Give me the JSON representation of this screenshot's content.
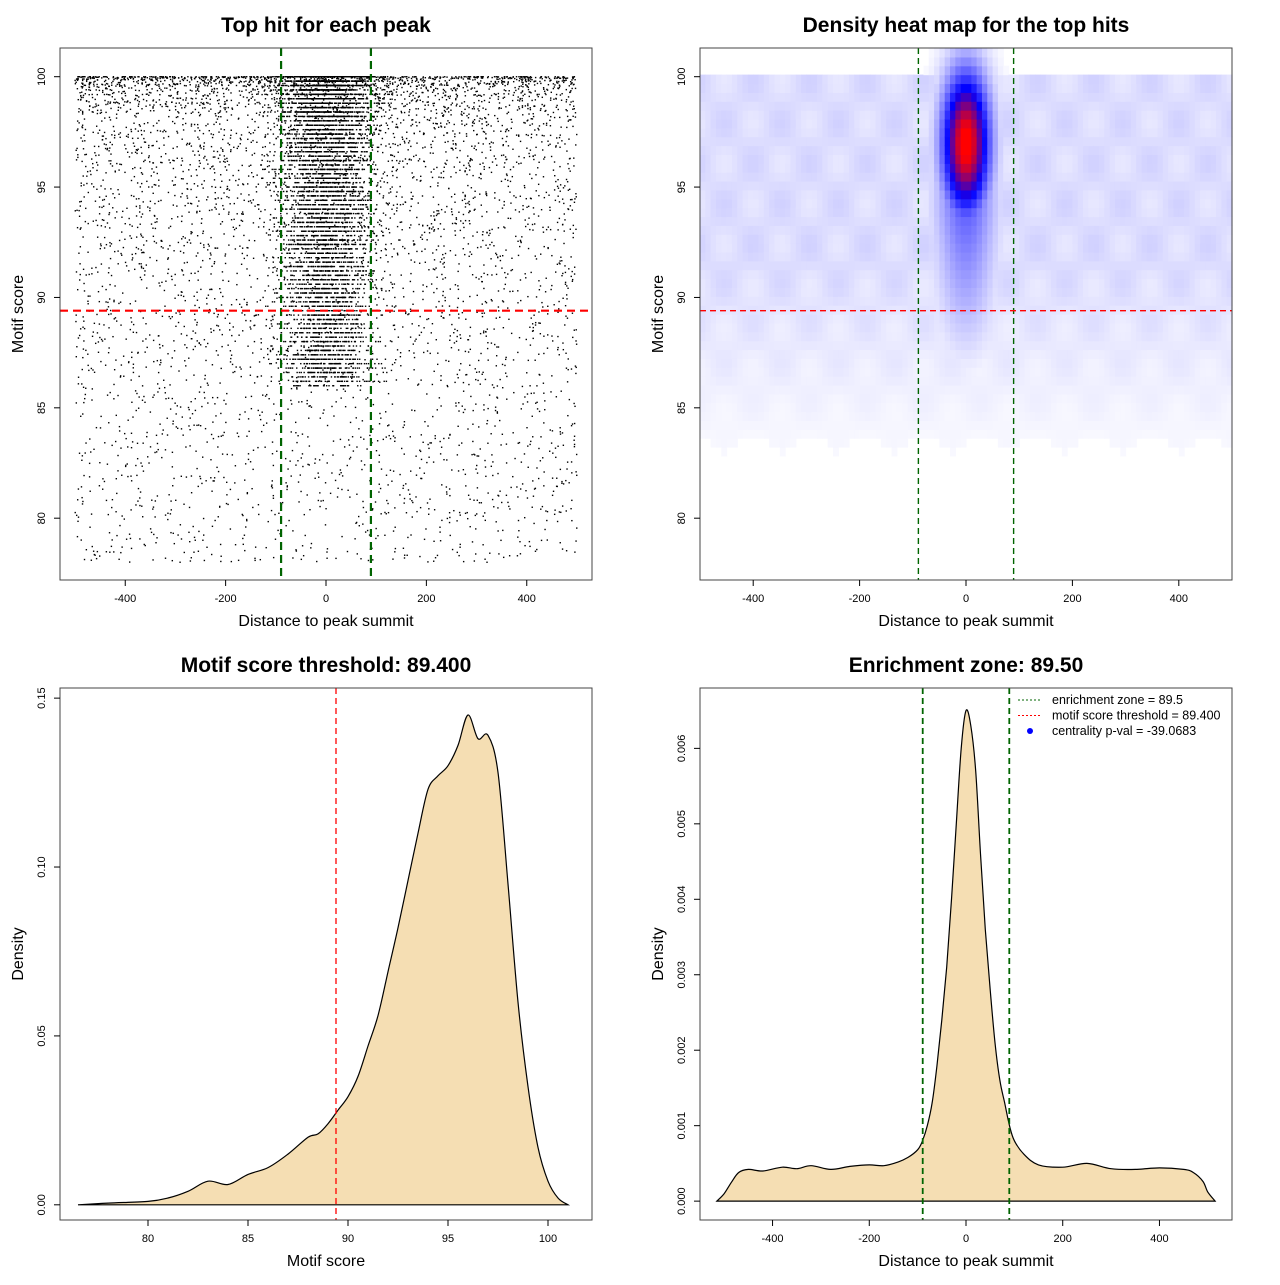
{
  "chart_data": [
    {
      "type": "scatter",
      "title": "Top hit for each peak",
      "xlabel": "Distance to peak summit",
      "ylabel": "Motif score",
      "xlim": [
        -530,
        530
      ],
      "ylim": [
        77.2,
        101.3
      ],
      "xticks": [
        -400,
        -200,
        0,
        200,
        400
      ],
      "yticks": [
        80,
        85,
        90,
        95,
        100
      ],
      "vlines": [
        -89.5,
        89.5
      ],
      "hline": 89.4,
      "vline_color": "#006400",
      "hline_color": "#ff0000",
      "point_color": "#000000",
      "distribution": {
        "x_range": [
          -500,
          500
        ],
        "central_peak_x_sd": 45,
        "central_score_range": [
          86,
          100
        ],
        "background_score_range": [
          78,
          100
        ],
        "approx_points": 12000
      }
    },
    {
      "type": "heatmap",
      "title": "Density heat map for the top hits",
      "xlabel": "Distance to peak summit",
      "ylabel": "Motif score",
      "xlim": [
        -500,
        500
      ],
      "ylim": [
        77.2,
        101.3
      ],
      "xticks": [
        -400,
        -200,
        0,
        200,
        400
      ],
      "yticks": [
        80,
        85,
        90,
        95,
        100
      ],
      "vlines": [
        -89.5,
        89.5
      ],
      "hline": 89.4,
      "colors": [
        "#ffffff",
        "#0000ff",
        "#ff0000"
      ],
      "hotspot": {
        "x": 0,
        "y": 97,
        "sd_x": 30,
        "sd_y": 2.2
      }
    },
    {
      "type": "area",
      "title": "Motif score threshold: 89.400",
      "xlabel": "Motif score",
      "ylabel": "Density",
      "xlim": [
        75.6,
        102.2
      ],
      "ylim": [
        -0.0045,
        0.153
      ],
      "xticks": [
        80,
        85,
        90,
        95,
        100
      ],
      "yticks": [
        0.0,
        0.05,
        0.1,
        0.15
      ],
      "ytick_labels": [
        "0.00",
        "0.05",
        "0.10",
        "0.15"
      ],
      "vline": 89.4,
      "fill_color": "#f5deb3",
      "x": [
        76.5,
        78,
        80,
        81,
        82,
        83,
        84,
        85,
        86,
        87,
        88,
        88.5,
        89,
        89.5,
        90,
        90.5,
        91,
        91.5,
        92,
        92.5,
        93,
        93.5,
        94,
        94.5,
        95,
        95.5,
        96,
        96.5,
        97,
        97.5,
        98,
        98.5,
        99,
        99.5,
        100,
        100.5,
        101
      ],
      "y": [
        0,
        0.0005,
        0.001,
        0.002,
        0.004,
        0.007,
        0.006,
        0.009,
        0.011,
        0.015,
        0.02,
        0.021,
        0.024,
        0.028,
        0.032,
        0.038,
        0.047,
        0.056,
        0.069,
        0.082,
        0.096,
        0.11,
        0.123,
        0.127,
        0.13,
        0.136,
        0.145,
        0.138,
        0.139,
        0.128,
        0.095,
        0.06,
        0.035,
        0.017,
        0.007,
        0.002,
        0
      ]
    },
    {
      "type": "area",
      "title": "Enrichment zone: 89.50",
      "xlabel": "Distance to peak summit",
      "ylabel": "Density",
      "xlim": [
        -550,
        550
      ],
      "ylim": [
        -0.00025,
        0.0068
      ],
      "xticks": [
        -400,
        -200,
        0,
        200,
        400
      ],
      "yticks": [
        0.0,
        0.001,
        0.002,
        0.003,
        0.004,
        0.005,
        0.006
      ],
      "ytick_labels": [
        "0.000",
        "0.001",
        "0.002",
        "0.003",
        "0.004",
        "0.005",
        "0.006"
      ],
      "vlines": [
        -89.5,
        89.5
      ],
      "fill_color": "#f5deb3",
      "x": [
        -515,
        -500,
        -485,
        -470,
        -450,
        -420,
        -380,
        -350,
        -320,
        -280,
        -240,
        -200,
        -170,
        -140,
        -120,
        -100,
        -90,
        -80,
        -70,
        -60,
        -50,
        -40,
        -30,
        -20,
        -10,
        0,
        10,
        20,
        30,
        40,
        50,
        60,
        70,
        80,
        90,
        100,
        120,
        150,
        200,
        250,
        300,
        350,
        400,
        450,
        470,
        490,
        500,
        515
      ],
      "y": [
        0,
        0.0001,
        0.00025,
        0.00038,
        0.00042,
        0.0004,
        0.00045,
        0.00043,
        0.00047,
        0.00042,
        0.00046,
        0.00048,
        0.00047,
        0.00052,
        0.00058,
        0.00068,
        0.0008,
        0.001,
        0.0013,
        0.0018,
        0.0024,
        0.0031,
        0.004,
        0.005,
        0.006,
        0.0065,
        0.0063,
        0.0057,
        0.0046,
        0.0036,
        0.0028,
        0.0021,
        0.0016,
        0.0013,
        0.001,
        0.0008,
        0.00062,
        0.00048,
        0.00045,
        0.0005,
        0.00043,
        0.00042,
        0.00044,
        0.00042,
        0.00038,
        0.00026,
        0.00012,
        0
      ],
      "legend": {
        "position": "top-right",
        "entries": [
          {
            "label": "enrichment zone = 89.5",
            "color": "#006400",
            "kind": "line"
          },
          {
            "label": "motif score threshold = 89.400",
            "color": "#ff0000",
            "kind": "line"
          },
          {
            "label": "centrality p-val = -39.0683",
            "color": "#0000ff",
            "kind": "point"
          }
        ]
      }
    }
  ]
}
